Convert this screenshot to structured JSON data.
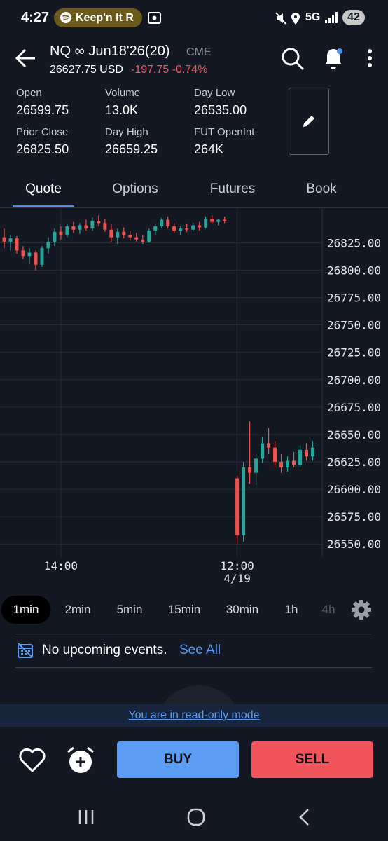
{
  "status_bar": {
    "time": "4:27",
    "media": "Keep'n It R",
    "network": "5G",
    "battery": "42"
  },
  "header": {
    "symbol": "NQ ∞ Jun18'26(20)",
    "exchange": "CME",
    "price": "26627.75 USD",
    "change": "-197.75 -0.74%"
  },
  "stats": [
    {
      "label": "Open",
      "value": "26599.75"
    },
    {
      "label": "Volume",
      "value": "13.0K"
    },
    {
      "label": "Day Low",
      "value": "26535.00"
    },
    {
      "label": "Prior Close",
      "value": "26825.50"
    },
    {
      "label": "Day High",
      "value": "26659.25"
    },
    {
      "label": "FUT OpenInt",
      "value": "264K"
    }
  ],
  "tabs": [
    "Quote",
    "Options",
    "Futures",
    "Book"
  ],
  "active_tab": 0,
  "chart_data": {
    "type": "candlestick",
    "up_color": "#26a69a",
    "down_color": "#ef5350",
    "grid": true,
    "xlim": [
      -0.67,
      50.5
    ],
    "ylim": [
      26538,
      26856
    ],
    "xticks": [
      {
        "value": 9,
        "label": "14:00"
      },
      {
        "value": 37,
        "label": "12:00",
        "sublabel": "4/19"
      }
    ],
    "yticks": [
      {
        "value": 26550,
        "label": "26550.00"
      },
      {
        "value": 26575,
        "label": "26575.00"
      },
      {
        "value": 26600,
        "label": "26600.00"
      },
      {
        "value": 26625,
        "label": "26625.00"
      },
      {
        "value": 26650,
        "label": "26650.00"
      },
      {
        "value": 26675,
        "label": "26675.00"
      },
      {
        "value": 26700,
        "label": "26700.00"
      },
      {
        "value": 26725,
        "label": "26725.00"
      },
      {
        "value": 26750,
        "label": "26750.00"
      },
      {
        "value": 26775,
        "label": "26775.00"
      },
      {
        "value": 26800,
        "label": "26800.00"
      },
      {
        "value": 26825,
        "label": "26825.00"
      }
    ],
    "x": [
      0,
      1,
      2,
      3,
      4,
      5,
      6,
      7,
      8,
      9,
      10,
      11,
      12,
      13,
      14,
      15,
      16,
      17,
      18,
      19,
      20,
      21,
      22,
      23,
      24,
      25,
      26,
      27,
      28,
      29,
      30,
      31,
      32,
      33,
      34,
      35,
      37,
      38,
      39,
      40,
      41,
      42,
      43,
      44,
      45,
      46,
      47,
      48,
      49
    ],
    "open": [
      26830,
      26826,
      26829,
      26818,
      26813,
      26816,
      26805,
      26820,
      26826,
      26835,
      26832,
      26840,
      26837,
      26841,
      26838,
      26845,
      26843,
      26837,
      26830,
      26835,
      26832,
      26830,
      26828,
      26826,
      26836,
      26840,
      26846,
      26840,
      26836,
      26838,
      26837,
      26841,
      26839,
      26847,
      26844,
      26846,
      26610,
      26558,
      26620,
      26615,
      26628,
      26642,
      26638,
      26625,
      26620,
      26626,
      26622,
      26636,
      26630
    ],
    "high": [
      26838,
      26832,
      26831,
      26822,
      26820,
      26818,
      26822,
      26830,
      26838,
      26840,
      26842,
      26844,
      26843,
      26846,
      26848,
      26850,
      26847,
      26842,
      26838,
      26839,
      26836,
      26834,
      26832,
      26838,
      26842,
      26848,
      26849,
      26843,
      26840,
      26842,
      26843,
      26844,
      26849,
      26850,
      26847,
      26849,
      26612,
      26625,
      26662,
      26632,
      26648,
      26656,
      26644,
      26632,
      26630,
      26634,
      26640,
      26642,
      26644
    ],
    "low": [
      26820,
      26818,
      26815,
      26810,
      26806,
      26800,
      26803,
      26815,
      26822,
      26828,
      26830,
      26834,
      26833,
      26836,
      26836,
      26840,
      26835,
      26826,
      26824,
      26829,
      26827,
      26826,
      26824,
      26825,
      26832,
      26838,
      26838,
      26834,
      26832,
      26835,
      26835,
      26836,
      26838,
      26842,
      26841,
      26843,
      26550,
      26552,
      26605,
      26604,
      26624,
      26632,
      26620,
      26615,
      26616,
      26620,
      26620,
      26626,
      26626
    ],
    "close": [
      26826,
      26829,
      26818,
      26813,
      26816,
      26805,
      26820,
      26826,
      26835,
      26832,
      26840,
      26837,
      26841,
      26838,
      26845,
      26843,
      26837,
      26830,
      26835,
      26832,
      26830,
      26828,
      26826,
      26836,
      26840,
      26846,
      26840,
      26836,
      26838,
      26837,
      26841,
      26839,
      26847,
      26844,
      26846,
      26845,
      26558,
      26620,
      26615,
      26628,
      26642,
      26638,
      26625,
      26620,
      26626,
      26622,
      26636,
      26630,
      26638
    ]
  },
  "timeframes": [
    "1min",
    "2min",
    "5min",
    "15min",
    "30min",
    "1h",
    "4h"
  ],
  "active_timeframe": 0,
  "events": {
    "text": "No upcoming events.",
    "link": "See All"
  },
  "banner": "You are in read-only mode",
  "actions": {
    "buy": "BUY",
    "sell": "SELL"
  }
}
